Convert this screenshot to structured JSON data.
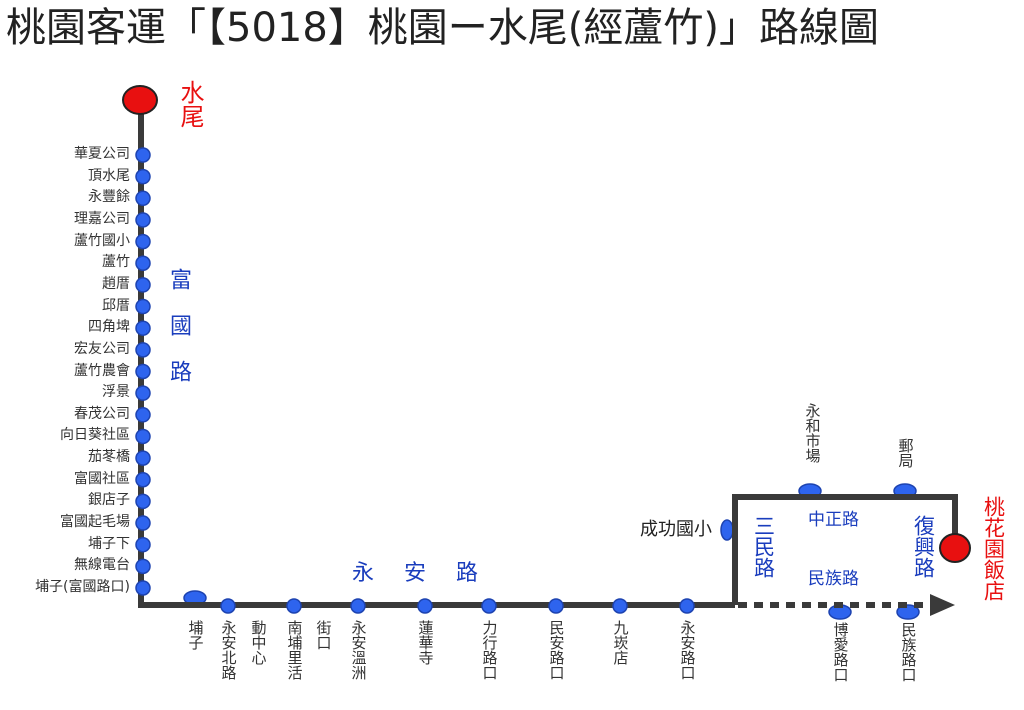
{
  "title": "桃園客運「【5018】桃園ー水尾(經蘆竹)」路線圖",
  "terminals": [
    "水尾",
    "桃花園飯店"
  ],
  "roads": [
    "富國路",
    "永安路",
    "三民路",
    "中正路",
    "民族路",
    "復興路"
  ],
  "stops_fuguo": [
    "華夏公司",
    "頂水尾",
    "永豐餘",
    "理嘉公司",
    "蘆竹國小",
    "蘆竹",
    "趙厝",
    "邱厝",
    "四角埤",
    "宏友公司",
    "蘆竹農會",
    "浮景",
    "春茂公司",
    "向日葵社區",
    "茄苳橋",
    "富國社區",
    "銀店子",
    "富國起毛場",
    "埔子下",
    "無線電台",
    "埔子(富國路口)"
  ],
  "stops_yongan": [
    "埔子",
    "永安北路",
    "動中心",
    "南埔里活",
    "街口",
    "永安溫洲",
    "蓮華寺",
    "力行路口",
    "民安路口",
    "九崁店",
    "永安路口"
  ],
  "loop_stops": [
    "永和市場",
    "郵局",
    "成功國小",
    "博愛路口",
    "民族路口"
  ]
}
